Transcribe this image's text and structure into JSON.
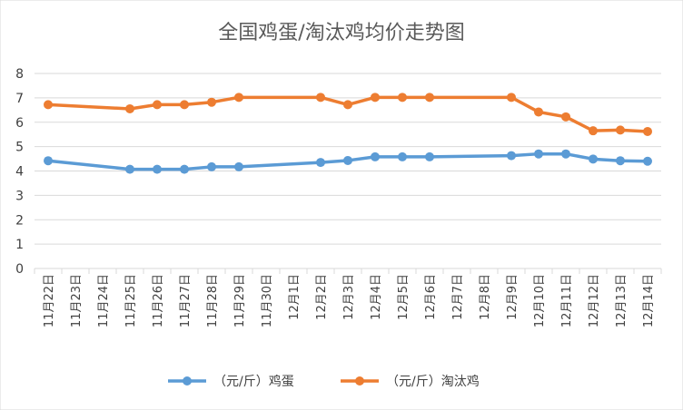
{
  "chart_data": {
    "type": "line",
    "title": "全国鸡蛋/淘汰鸡均价走势图",
    "xlabel": "",
    "ylabel": "",
    "ylim": [
      0,
      8
    ],
    "yticks": [
      "0",
      "1",
      "2",
      "3",
      "4",
      "5",
      "6",
      "7",
      "8"
    ],
    "grid": "horizontal",
    "legend": "bottom",
    "categories": [
      "11月22日",
      "11月23日",
      "11月24日",
      "11月25日",
      "11月26日",
      "11月27日",
      "11月28日",
      "11月29日",
      "11月30日",
      "12月1日",
      "12月2日",
      "12月3日",
      "12月4日",
      "12月5日",
      "12月6日",
      "12月7日",
      "12月8日",
      "12月9日",
      "12月10日",
      "12月11日",
      "12月12日",
      "12月13日",
      "12月14日"
    ],
    "series": [
      {
        "name": "（元/斤）鸡蛋",
        "color": "#5B9BD5",
        "values": [
          4.42,
          null,
          null,
          4.07,
          4.07,
          4.07,
          4.17,
          4.17,
          null,
          null,
          4.35,
          4.43,
          4.58,
          4.58,
          4.58,
          null,
          null,
          4.63,
          4.7,
          4.7,
          4.49,
          4.42,
          4.4
        ]
      },
      {
        "name": "（元/斤）淘汰鸡",
        "color": "#ED7D31",
        "values": [
          6.72,
          null,
          null,
          6.55,
          6.72,
          6.72,
          6.82,
          7.02,
          null,
          null,
          7.02,
          6.72,
          7.02,
          7.02,
          7.02,
          null,
          null,
          7.02,
          6.42,
          6.22,
          5.65,
          5.68,
          5.62
        ]
      }
    ]
  }
}
